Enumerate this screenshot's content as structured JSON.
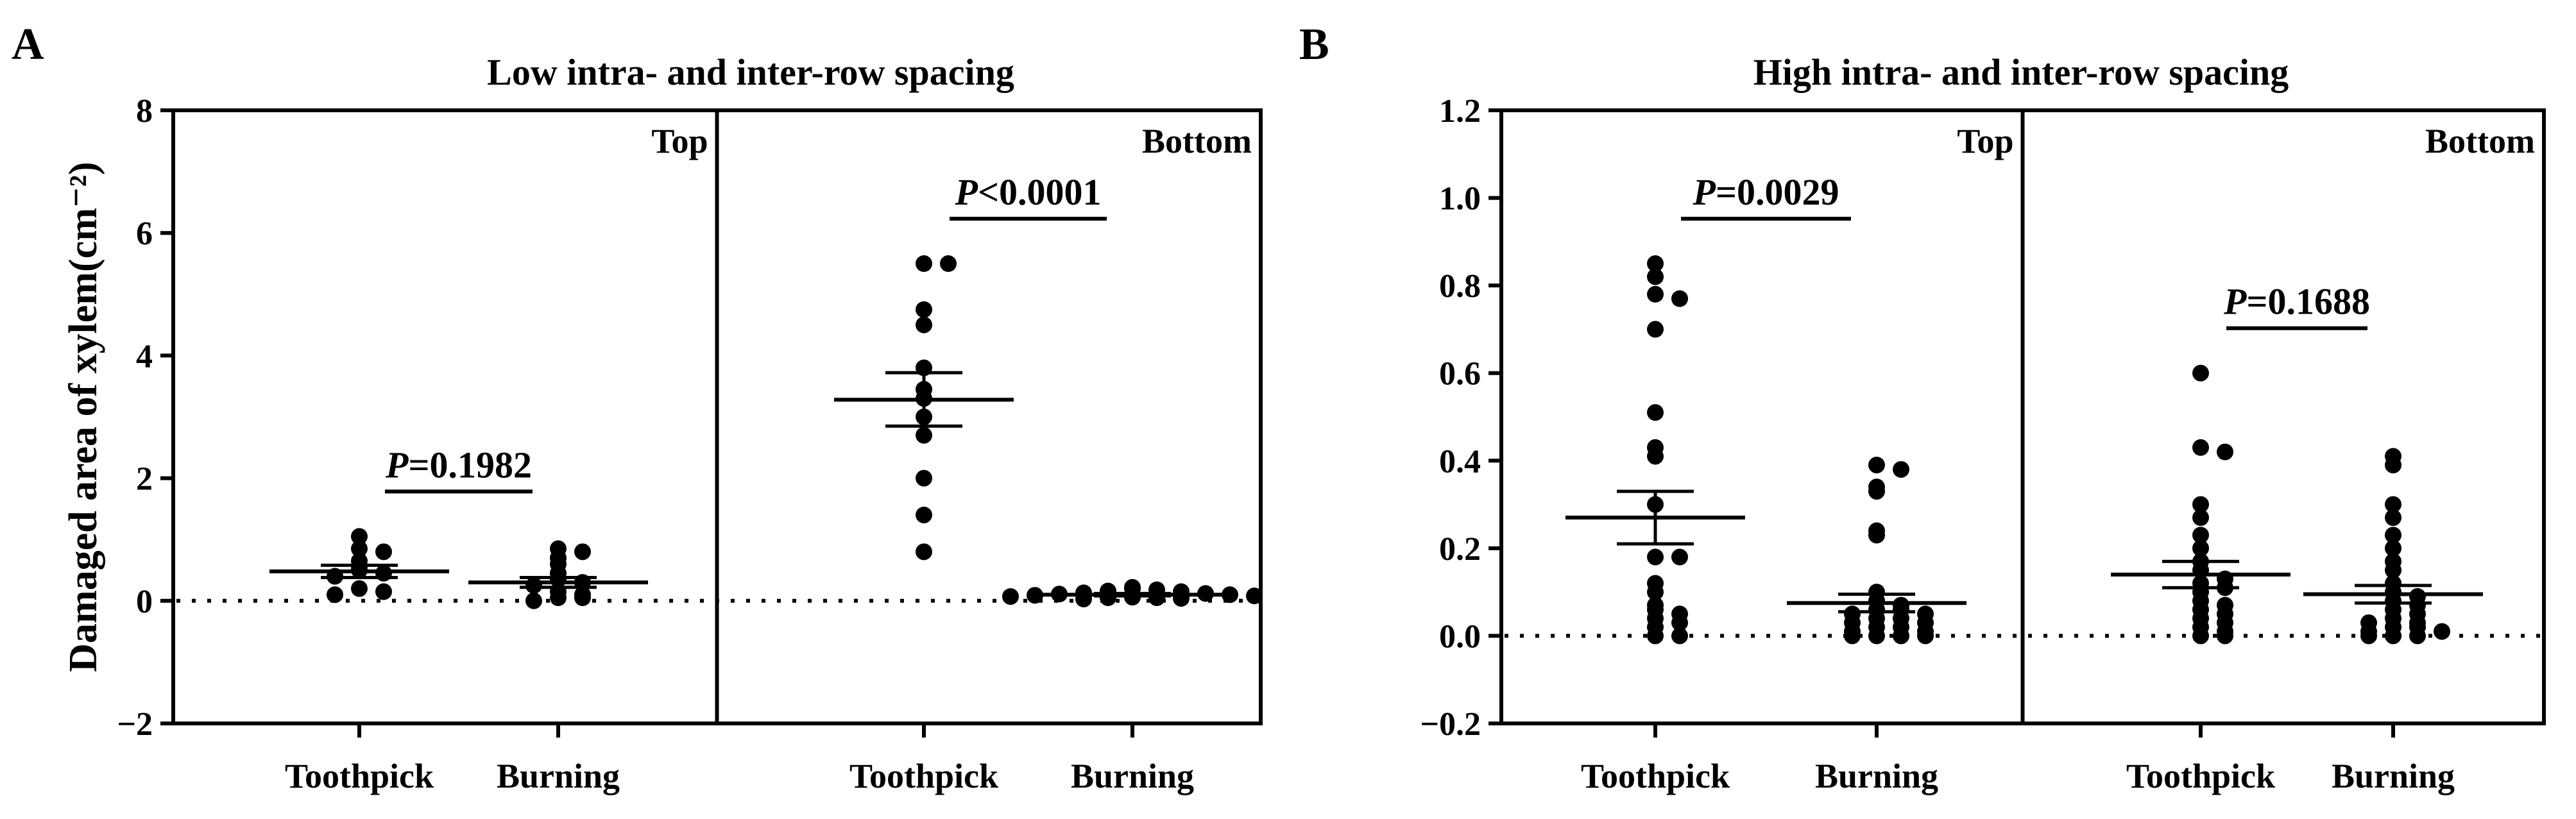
{
  "panels": [
    {
      "letter": "A",
      "title": "Low intra- and inter-row spacing",
      "y_label": "Damaged area of xylem(cm⁻²)"
    },
    {
      "letter": "B",
      "title": "High intra- and inter-row spacing",
      "y_label": ""
    }
  ],
  "chart_data": [
    {
      "type": "scatter",
      "panel": "A",
      "title": "Low intra- and inter-row spacing",
      "ylabel": "Damaged area of xylem(cm⁻²)",
      "ylim": [
        -2,
        8
      ],
      "yticks": [
        -2,
        0,
        2,
        4,
        6,
        8
      ],
      "ytick_labels": [
        "−2",
        "0",
        "2",
        "4",
        "6",
        "8"
      ],
      "reference_line": 0,
      "grid": false,
      "subplots": [
        {
          "label": "Top",
          "comparison": "P=0.1982",
          "groups": [
            {
              "name": "Toothpick",
              "mean": 0.48,
              "sem_low": 0.38,
              "sem_high": 0.58,
              "values": [
                1.05,
                0.85,
                0.8,
                0.65,
                0.55,
                0.5,
                0.45,
                0.4,
                0.2,
                0.15,
                0.1
              ]
            },
            {
              "name": "Burning",
              "mean": 0.3,
              "sem_low": 0.22,
              "sem_high": 0.38,
              "values": [
                0.85,
                0.8,
                0.7,
                0.6,
                0.45,
                0.35,
                0.3,
                0.25,
                0.15,
                0.1,
                0.05,
                0.05,
                0.0
              ]
            }
          ]
        },
        {
          "label": "Bottom",
          "comparison": "P<0.0001",
          "groups": [
            {
              "name": "Toothpick",
              "mean": 3.28,
              "sem_low": 2.85,
              "sem_high": 3.72,
              "values": [
                5.5,
                5.5,
                4.75,
                4.5,
                3.8,
                3.45,
                3.3,
                3.0,
                2.7,
                2.0,
                1.4,
                0.8
              ]
            },
            {
              "name": "Burning",
              "mean": 0.1,
              "sem_low": 0.08,
              "sem_high": 0.12,
              "values": [
                0.22,
                0.2,
                0.18,
                0.16,
                0.15,
                0.13,
                0.12,
                0.11,
                0.1,
                0.09,
                0.08,
                0.07,
                0.06,
                0.05,
                0.05,
                0.04,
                0.03
              ]
            }
          ]
        }
      ]
    },
    {
      "type": "scatter",
      "panel": "B",
      "title": "High intra- and inter-row spacing",
      "ylabel": "",
      "ylim": [
        -0.2,
        1.2
      ],
      "yticks": [
        -0.2,
        0.0,
        0.2,
        0.4,
        0.6,
        0.8,
        1.0,
        1.2
      ],
      "ytick_labels": [
        "−0.2",
        "0.0",
        "0.2",
        "0.4",
        "0.6",
        "0.8",
        "1.0",
        "1.2"
      ],
      "reference_line": 0,
      "grid": false,
      "subplots": [
        {
          "label": "Top",
          "comparison": "P=0.0029",
          "groups": [
            {
              "name": "Toothpick",
              "mean": 0.27,
              "sem_low": 0.21,
              "sem_high": 0.33,
              "values": [
                0.85,
                0.82,
                0.78,
                0.77,
                0.7,
                0.51,
                0.43,
                0.41,
                0.3,
                0.18,
                0.18,
                0.12,
                0.1,
                0.07,
                0.06,
                0.05,
                0.04,
                0.03,
                0.02,
                0.0,
                0.0
              ]
            },
            {
              "name": "Burning",
              "mean": 0.075,
              "sem_low": 0.055,
              "sem_high": 0.095,
              "values": [
                0.39,
                0.38,
                0.34,
                0.33,
                0.24,
                0.23,
                0.1,
                0.08,
                0.07,
                0.06,
                0.06,
                0.05,
                0.05,
                0.04,
                0.04,
                0.03,
                0.03,
                0.02,
                0.02,
                0.01,
                0.01,
                0.0,
                0.0,
                0.0,
                0.0
              ]
            }
          ]
        },
        {
          "label": "Bottom",
          "comparison": "P=0.1688",
          "groups": [
            {
              "name": "Toothpick",
              "mean": 0.14,
              "sem_low": 0.11,
              "sem_high": 0.17,
              "values": [
                0.6,
                0.43,
                0.42,
                0.3,
                0.27,
                0.23,
                0.2,
                0.17,
                0.15,
                0.13,
                0.12,
                0.11,
                0.1,
                0.08,
                0.07,
                0.06,
                0.05,
                0.04,
                0.03,
                0.02,
                0.01,
                0.0,
                0.0
              ]
            },
            {
              "name": "Burning",
              "mean": 0.095,
              "sem_low": 0.075,
              "sem_high": 0.115,
              "values": [
                0.41,
                0.39,
                0.3,
                0.27,
                0.23,
                0.2,
                0.17,
                0.15,
                0.12,
                0.1,
                0.09,
                0.08,
                0.07,
                0.06,
                0.05,
                0.04,
                0.03,
                0.03,
                0.02,
                0.02,
                0.01,
                0.01,
                0.0,
                0.0,
                0.0
              ]
            }
          ]
        }
      ]
    }
  ]
}
